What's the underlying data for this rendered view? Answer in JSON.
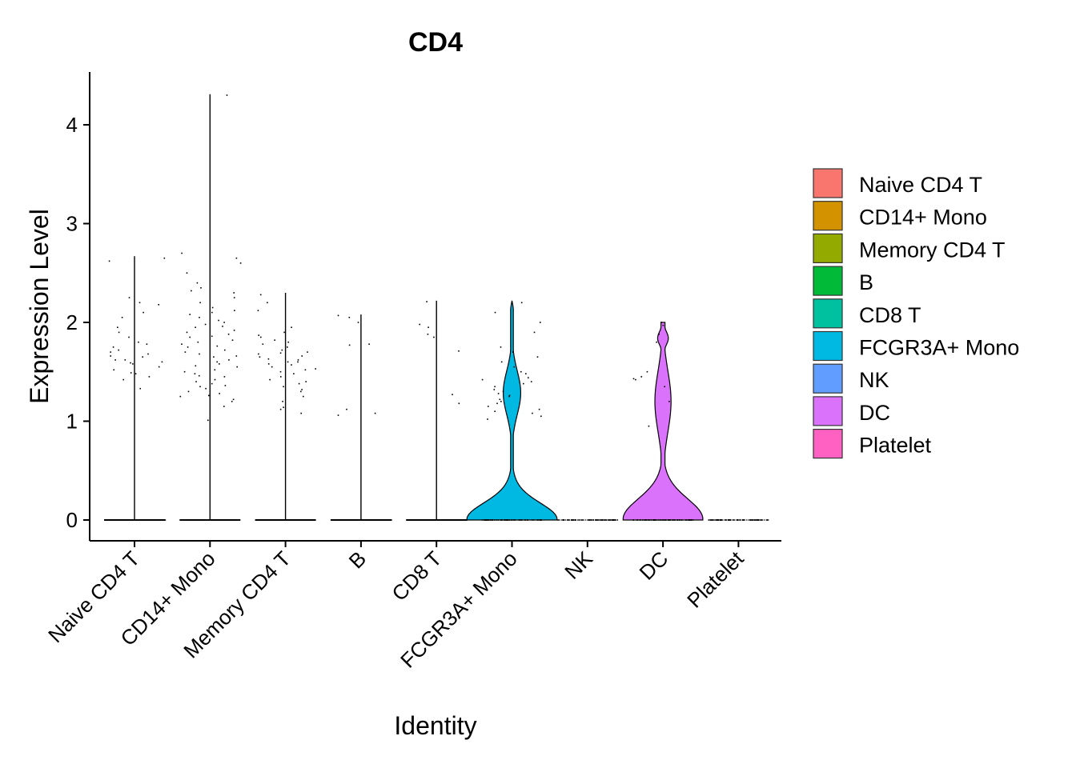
{
  "chart_data": {
    "type": "violin",
    "title": "CD4",
    "xlabel": "Identity",
    "ylabel": "Expression Level",
    "ylim": [
      -0.2,
      4.55
    ],
    "yticks": [
      0,
      1,
      2,
      3,
      4
    ],
    "grid": false,
    "legend_position": "right",
    "categories": [
      "Naive CD4 T",
      "CD14+ Mono",
      "Memory CD4 T",
      "B",
      "CD8 T",
      "FCGR3A+ Mono",
      "NK",
      "DC",
      "Platelet"
    ],
    "colors": [
      "#F8766D",
      "#D39200",
      "#93AA00",
      "#00BA38",
      "#00C19F",
      "#00B9E3",
      "#619CFF",
      "#DB72FB",
      "#FF61C3"
    ],
    "legend_entries": [
      "Naive CD4 T",
      "CD14+ Mono",
      "Memory CD4 T",
      "B",
      "CD8 T",
      "FCGR3A+ Mono",
      "NK",
      "DC",
      "Platelet"
    ],
    "series": [
      {
        "category": "Naive CD4 T",
        "max": 2.67,
        "nonzero_points": [
          1.6,
          1.62,
          1.65,
          1.58,
          1.7,
          1.75,
          1.8,
          1.66,
          1.52,
          1.49,
          1.72,
          1.9,
          2.2,
          2.62,
          1.45,
          1.33,
          1.85,
          2.05,
          1.55,
          1.62,
          2.25,
          2.1,
          2.18,
          2.65,
          1.48,
          1.68,
          1.78,
          1.95,
          1.42,
          1.59
        ]
      },
      {
        "category": "CD14+ Mono",
        "max": 4.31,
        "nonzero_points": [
          1.01,
          1.15,
          1.2,
          1.25,
          1.3,
          1.35,
          1.4,
          1.45,
          1.5,
          1.55,
          1.6,
          1.65,
          1.7,
          1.75,
          1.8,
          1.85,
          1.9,
          1.95,
          2.0,
          2.05,
          2.1,
          2.2,
          2.3,
          2.35,
          2.4,
          2.5,
          2.6,
          2.65,
          2.7,
          4.3,
          1.22,
          1.28,
          1.33,
          1.38,
          1.42,
          1.48,
          1.52,
          1.58,
          1.62,
          1.68,
          1.72,
          1.78,
          1.82,
          1.88,
          1.92,
          1.98,
          2.02,
          2.08,
          2.15,
          2.25,
          1.26,
          1.36,
          1.46,
          1.56,
          1.66,
          1.76,
          1.86,
          1.96,
          2.12,
          2.32
        ]
      },
      {
        "category": "Memory CD4 T",
        "max": 2.3,
        "nonzero_points": [
          1.12,
          1.2,
          1.3,
          1.35,
          1.4,
          1.45,
          1.5,
          1.52,
          1.55,
          1.58,
          1.6,
          1.62,
          1.65,
          1.68,
          1.7,
          1.75,
          1.8,
          1.85,
          1.9,
          1.95,
          2.12,
          2.2,
          2.28,
          1.08,
          1.25,
          1.38,
          1.48,
          1.57,
          1.63,
          1.72,
          1.78,
          1.87,
          1.42,
          1.6,
          1.66,
          1.53,
          1.69,
          1.82,
          1.14,
          1.32
        ]
      },
      {
        "category": "B",
        "max": 2.08,
        "nonzero_points": [
          1.08,
          1.12,
          1.06,
          1.78,
          2.0,
          2.05,
          2.07,
          1.77
        ]
      },
      {
        "category": "CD8 T",
        "max": 2.22,
        "nonzero_points": [
          1.18,
          1.27,
          1.71,
          1.85,
          1.95,
          1.98,
          2.21,
          1.88
        ]
      },
      {
        "category": "FCGR3A+ Mono",
        "max": 2.22,
        "nonzero_points": [
          1.05,
          1.1,
          1.15,
          1.2,
          1.25,
          1.3,
          1.35,
          1.4,
          1.5,
          1.55,
          1.6,
          1.7,
          1.75,
          1.9,
          2.0,
          2.1,
          2.2,
          1.08,
          1.18,
          1.22,
          1.28,
          1.32,
          1.42,
          1.48,
          1.12,
          1.38,
          1.44,
          1.65,
          1.02,
          1.26
        ]
      },
      {
        "category": "NK",
        "max": 0.0,
        "nonzero_points": []
      },
      {
        "category": "DC",
        "max": 2.0,
        "nonzero_points": [
          0.95,
          1.2,
          1.35,
          1.45,
          1.5,
          1.43,
          1.88,
          1.97,
          2.0,
          1.42,
          1.8
        ]
      },
      {
        "category": "Platelet",
        "max": 0.0,
        "nonzero_points": []
      }
    ]
  }
}
